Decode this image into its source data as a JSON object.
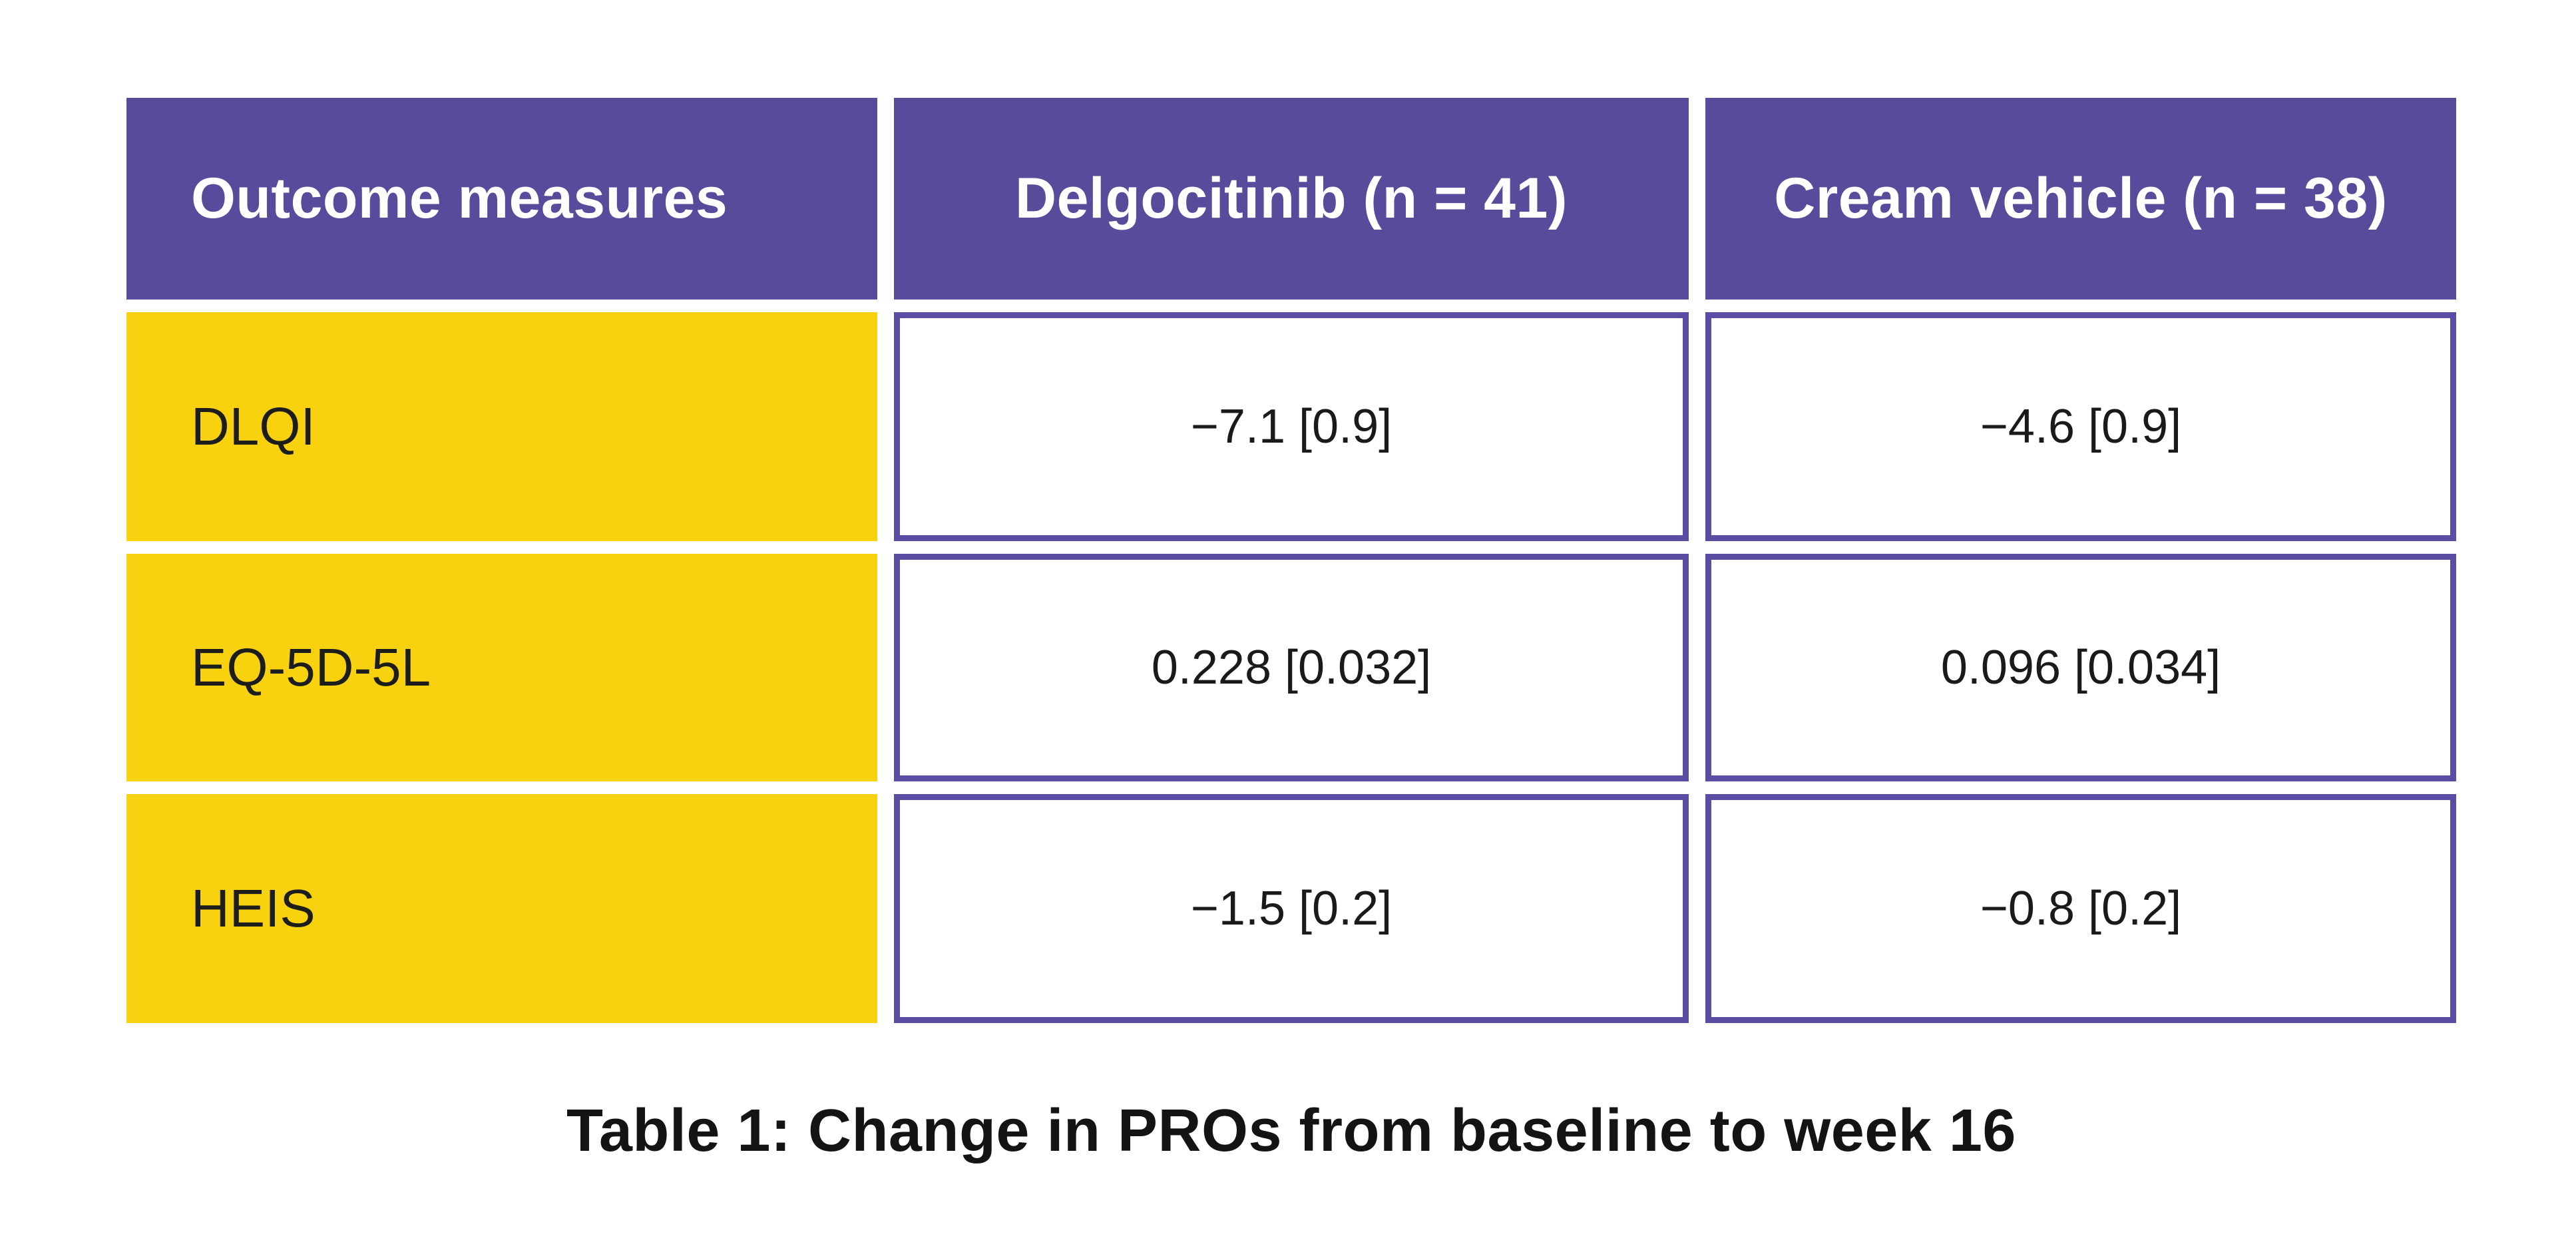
{
  "chart_data": {
    "type": "table",
    "title": "Table 1: Change in PROs from baseline to week 16",
    "columns": [
      "Outcome measures",
      "Delgocitinib (n = 41)",
      "Cream vehicle (n = 38)"
    ],
    "rows": [
      {
        "measure": "DLQI",
        "values": [
          "−7.1 [0.9]",
          "−4.6 [0.9]"
        ],
        "numeric": {
          "delgocitinib": {
            "change": -7.1,
            "se": 0.9
          },
          "cream_vehicle": {
            "change": -4.6,
            "se": 0.9
          }
        }
      },
      {
        "measure": "EQ-5D-5L",
        "values": [
          "0.228 [0.032]",
          "0.096 [0.034]"
        ],
        "numeric": {
          "delgocitinib": {
            "change": 0.228,
            "se": 0.032
          },
          "cream_vehicle": {
            "change": 0.096,
            "se": 0.034
          }
        }
      },
      {
        "measure": "HEIS",
        "values": [
          "−1.5 [0.2]",
          "−0.8 [0.2]"
        ],
        "numeric": {
          "delgocitinib": {
            "change": -1.5,
            "se": 0.2
          },
          "cream_vehicle": {
            "change": -0.8,
            "se": 0.2
          }
        }
      }
    ],
    "group_sizes": {
      "delgocitinib_n": 41,
      "cream_vehicle_n": 38
    },
    "layout": {
      "grid": "off",
      "legend": "none"
    }
  },
  "colors": {
    "header_purple": "#574B9B",
    "border_purple": "#5A4EA4",
    "label_yellow": "#F8D20F",
    "header_text": "#FFFFFF",
    "body_text": "#1A1A1A",
    "background": "#FFFFFF"
  }
}
